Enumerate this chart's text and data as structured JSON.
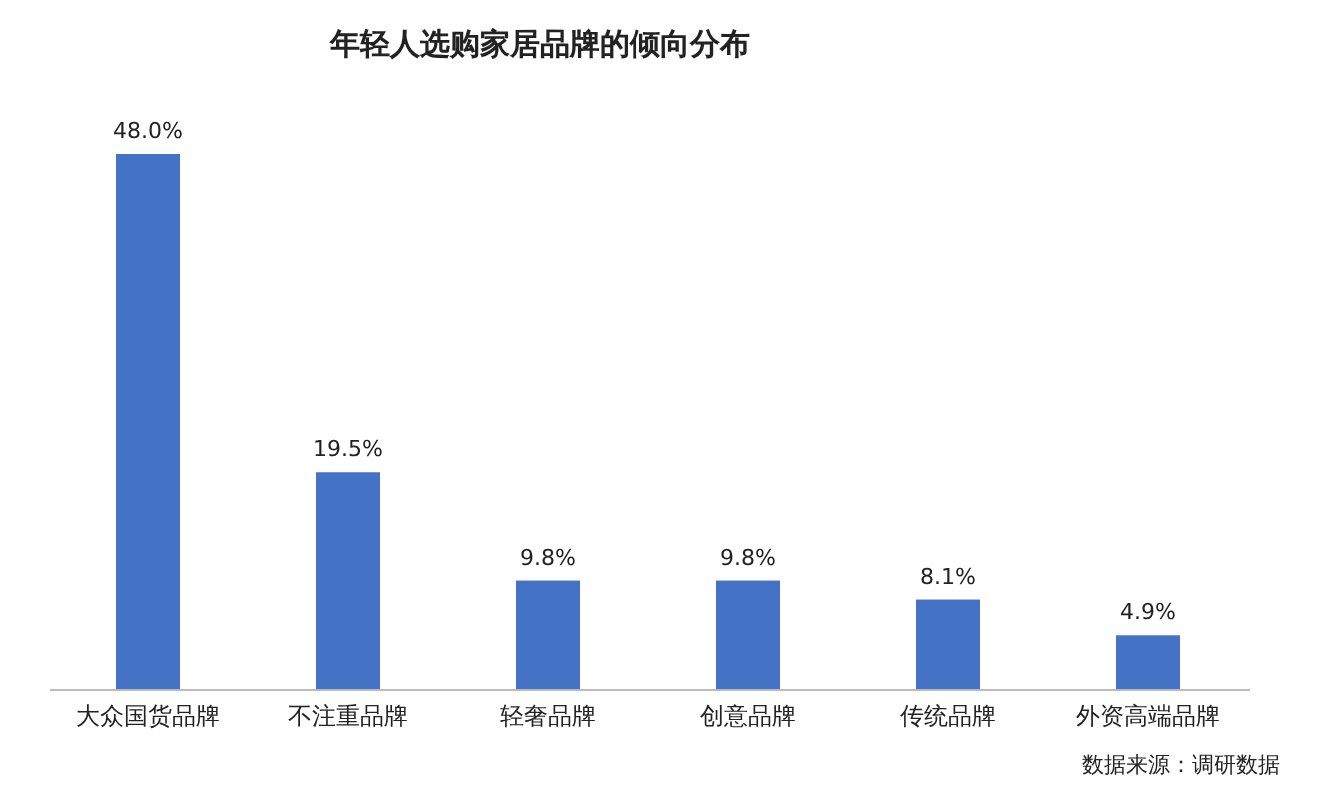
{
  "chart_data": {
    "type": "bar",
    "title": "年轻人选购家居品牌的倾向分布",
    "categories": [
      "大众国货品牌",
      "不注重品牌",
      "轻奢品牌",
      "创意品牌",
      "传统品牌",
      "外资高端品牌"
    ],
    "values": [
      48.0,
      19.5,
      9.8,
      9.8,
      8.1,
      4.9
    ],
    "value_labels": [
      "48.0%",
      "19.5%",
      "9.8%",
      "9.8%",
      "8.1%",
      "4.9%"
    ],
    "color": "#4472c4",
    "annotations": [
      "数据来源：调研数据"
    ]
  }
}
